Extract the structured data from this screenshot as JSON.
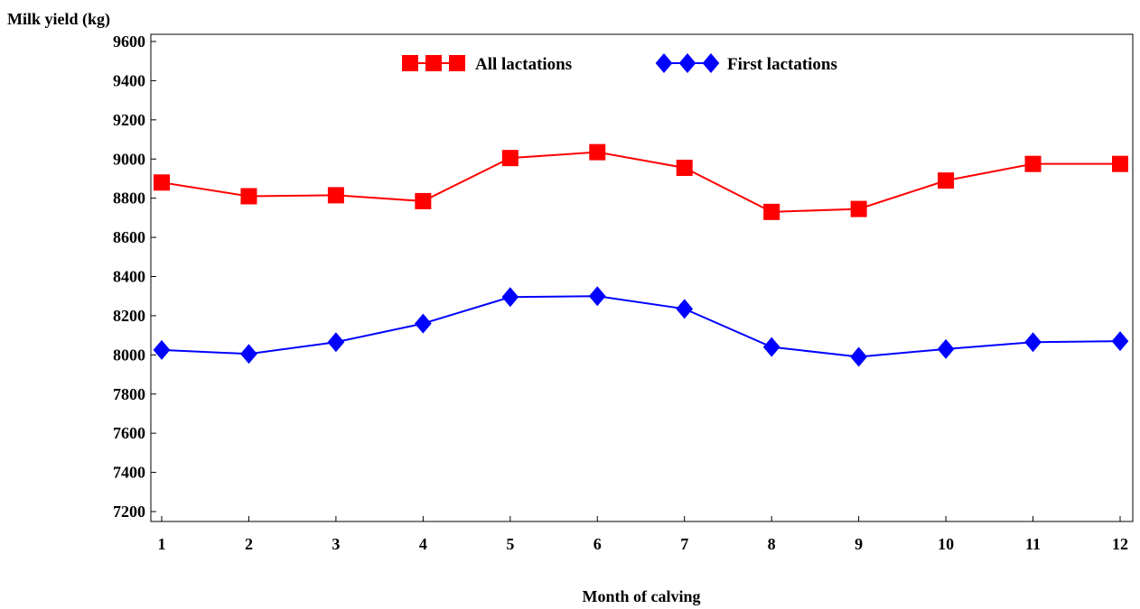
{
  "chart_data": {
    "type": "line",
    "title": "",
    "xlabel": "Month of calving",
    "ylabel": "Milk yield (kg)",
    "x": [
      1,
      2,
      3,
      4,
      5,
      6,
      7,
      8,
      9,
      10,
      11,
      12
    ],
    "ylim": [
      7200,
      9600
    ],
    "yticks": [
      7200,
      7400,
      7600,
      7800,
      8000,
      8200,
      8400,
      8600,
      8800,
      9000,
      9200,
      9400,
      9600
    ],
    "grid": false,
    "legend_position": "top",
    "series": [
      {
        "name": "All lactations",
        "color": "#ff0000",
        "marker": "square",
        "values": [
          8880,
          8810,
          8815,
          8785,
          9005,
          9035,
          8955,
          8730,
          8745,
          8890,
          8975,
          8975
        ]
      },
      {
        "name": "First lactations",
        "color": "#0000ff",
        "marker": "diamond",
        "values": [
          8025,
          8005,
          8065,
          8160,
          8295,
          8300,
          8235,
          8040,
          7990,
          8030,
          8065,
          8070
        ]
      }
    ]
  }
}
